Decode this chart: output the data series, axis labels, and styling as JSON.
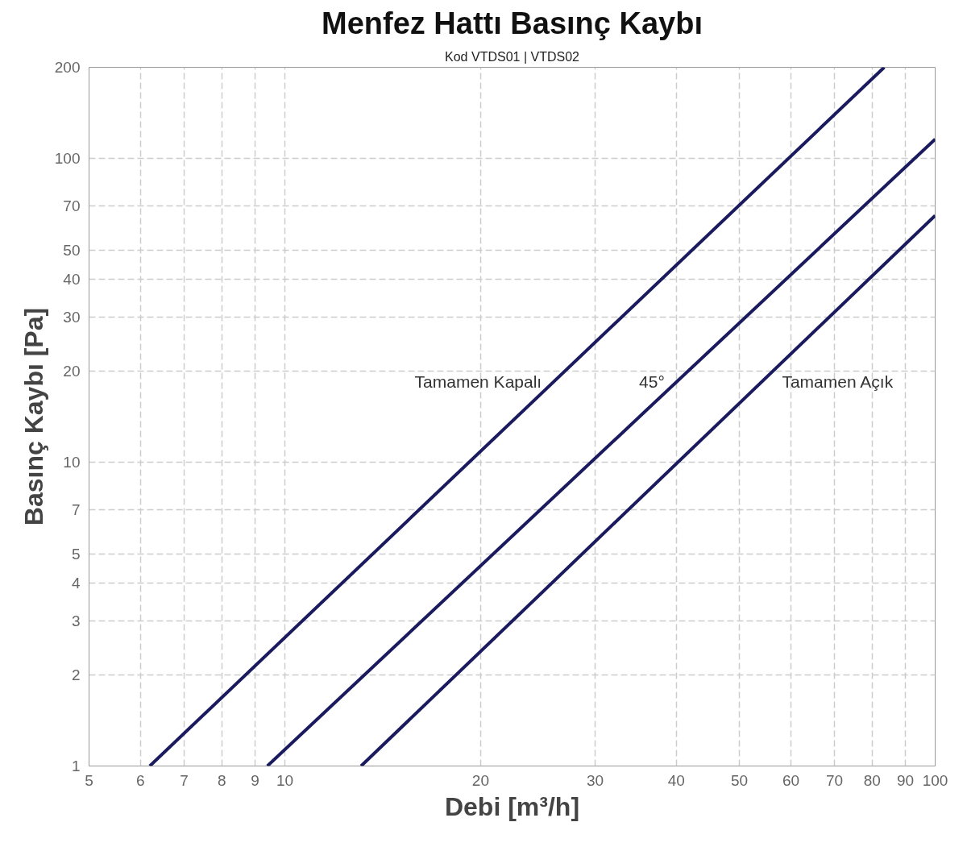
{
  "chart_data": {
    "type": "line",
    "title": "Menfez Hattı Basınç Kaybı",
    "subtitle": "Kod VTDS01 | VTDS02",
    "xlabel": "Debi [m³/h]",
    "ylabel": "Basınç Kaybı [Pa]",
    "log": "xy",
    "grid": true,
    "line_style": "solid",
    "marker": "none",
    "xlim": [
      5,
      100
    ],
    "ylim": [
      1,
      200
    ],
    "xticks": [
      5,
      6,
      7,
      8,
      9,
      10,
      20,
      30,
      40,
      50,
      60,
      70,
      80,
      90,
      100
    ],
    "yticks": [
      1,
      2,
      3,
      4,
      5,
      7,
      10,
      20,
      30,
      40,
      50,
      70,
      100,
      200
    ],
    "series": [
      {
        "name": "Tamamen Kapalı",
        "color": "#1a1a5e",
        "x": [
          6.2,
          83.5
        ],
        "values": [
          1,
          200
        ]
      },
      {
        "name": "45°",
        "color": "#1a1a5e",
        "x": [
          9.4,
          100
        ],
        "values": [
          1,
          116
        ]
      },
      {
        "name": "Tamamen Açık",
        "color": "#1a1a5e",
        "x": [
          13.1,
          100
        ],
        "values": [
          1,
          65
        ]
      }
    ]
  }
}
